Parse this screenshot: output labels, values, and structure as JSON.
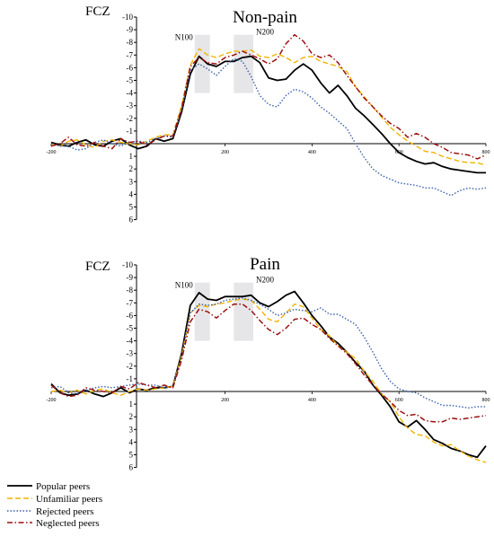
{
  "chart_data": [
    {
      "type": "line",
      "title": "Non-pain",
      "electrode": "FCZ",
      "y_ticks": [
        "-10",
        "-9",
        "-8",
        "-7",
        "-6",
        "-5",
        "-4",
        "-3",
        "-2",
        "-1",
        "1",
        "2",
        "3",
        "4",
        "5",
        "6"
      ],
      "y_tick_values": [
        -10,
        -9,
        -8,
        -7,
        -6,
        -5,
        -4,
        -3,
        -2,
        -1,
        1,
        2,
        3,
        4,
        5,
        6
      ],
      "x_ticks": [
        "-200",
        "200",
        "400",
        "600",
        "800"
      ],
      "x_tick_values": [
        -200,
        200,
        400,
        600,
        800
      ],
      "xlim": [
        -200,
        800
      ],
      "ylim": [
        -10,
        6
      ],
      "y_axis_inverted": true,
      "windows": [
        {
          "label": "N100",
          "x_range": [
            130,
            165
          ],
          "y_range": [
            -8.6,
            -4
          ]
        },
        {
          "label": "N200",
          "x_range": [
            220,
            265
          ],
          "y_range": [
            -8.6,
            -4
          ]
        }
      ],
      "series": [
        {
          "name": "Popular peers",
          "x": [
            -200,
            -180,
            -160,
            -140,
            -120,
            -100,
            -80,
            -60,
            -40,
            -20,
            0,
            20,
            40,
            60,
            80,
            100,
            120,
            140,
            160,
            180,
            200,
            220,
            240,
            260,
            280,
            300,
            320,
            340,
            360,
            380,
            400,
            420,
            440,
            460,
            480,
            500,
            520,
            540,
            560,
            580,
            600,
            620,
            640,
            660,
            680,
            700,
            720,
            740,
            760,
            780,
            800
          ],
          "y": [
            -0.1,
            0.1,
            0.2,
            -0.1,
            -0.3,
            0.1,
            0.2,
            -0.2,
            -0.4,
            0.1,
            0.4,
            0.2,
            -0.4,
            -0.2,
            -0.4,
            -2.5,
            -5.5,
            -6.9,
            -6.3,
            -6.1,
            -6.5,
            -6.5,
            -6.8,
            -6.9,
            -6.4,
            -5.2,
            -5,
            -5.1,
            -5.8,
            -6.3,
            -5.8,
            -4.8,
            -4,
            -4.6,
            -3.8,
            -2.8,
            -2.2,
            -1.5,
            -0.8,
            0,
            0.7,
            1.1,
            1.4,
            1.6,
            1.5,
            1.8,
            2,
            2.1,
            2.2,
            2.3,
            2.3
          ]
        },
        {
          "name": "Unfamiliar peers",
          "x": [
            -200,
            -180,
            -160,
            -140,
            -120,
            -100,
            -80,
            -60,
            -40,
            -20,
            0,
            20,
            40,
            60,
            80,
            100,
            120,
            140,
            160,
            180,
            200,
            220,
            240,
            260,
            280,
            300,
            320,
            340,
            360,
            380,
            400,
            420,
            440,
            460,
            480,
            500,
            520,
            540,
            560,
            580,
            600,
            620,
            640,
            660,
            680,
            700,
            720,
            740,
            760,
            780,
            800
          ],
          "y": [
            0,
            0.2,
            -0.2,
            -0.3,
            0.1,
            0.3,
            -0.2,
            -0.3,
            -0.1,
            0,
            0.1,
            -0.2,
            -0.5,
            -0.7,
            -0.7,
            -3,
            -6.2,
            -7.5,
            -7,
            -6.8,
            -7.1,
            -7.3,
            -7.3,
            -7.4,
            -6.9,
            -6.8,
            -7.1,
            -6.8,
            -6.4,
            -6.8,
            -6.9,
            -6.5,
            -6.3,
            -6.1,
            -5.7,
            -4.5,
            -3.7,
            -2.9,
            -2.1,
            -1.3,
            -0.7,
            -0.2,
            0.2,
            0.6,
            0.7,
            1,
            1.2,
            1.4,
            1.5,
            1.5,
            1.7
          ]
        },
        {
          "name": "Rejected peers",
          "x": [
            -200,
            -180,
            -160,
            -140,
            -120,
            -100,
            -80,
            -60,
            -40,
            -20,
            0,
            20,
            40,
            60,
            80,
            100,
            120,
            140,
            160,
            180,
            200,
            220,
            240,
            260,
            280,
            300,
            320,
            340,
            360,
            380,
            400,
            420,
            440,
            460,
            480,
            500,
            520,
            540,
            560,
            580,
            600,
            620,
            640,
            660,
            680,
            700,
            720,
            740,
            760,
            780,
            800
          ],
          "y": [
            0,
            0.2,
            0.2,
            0.5,
            0.4,
            -0.1,
            -0.3,
            0,
            0.2,
            -0.1,
            -0.2,
            -0.1,
            -0.4,
            -0.6,
            -0.5,
            -2.6,
            -5.8,
            -6.3,
            -5.9,
            -5.4,
            -6.1,
            -6.7,
            -6.5,
            -5.3,
            -3.8,
            -3.1,
            -2.9,
            -3.8,
            -4.3,
            -4.1,
            -3.6,
            -2.9,
            -2.4,
            -1.8,
            -1.2,
            0,
            1.1,
            2,
            2.5,
            2.8,
            3.1,
            3.2,
            3.3,
            3.5,
            3.5,
            3.8,
            4.1,
            3.7,
            3.5,
            3.6,
            3.5
          ]
        },
        {
          "name": "Neglected peers",
          "x": [
            -200,
            -180,
            -160,
            -140,
            -120,
            -100,
            -80,
            -60,
            -40,
            -20,
            0,
            20,
            40,
            60,
            80,
            100,
            120,
            140,
            160,
            180,
            200,
            220,
            240,
            260,
            280,
            300,
            320,
            340,
            360,
            380,
            400,
            420,
            440,
            460,
            480,
            500,
            520,
            540,
            560,
            580,
            600,
            620,
            640,
            660,
            680,
            700,
            720,
            740,
            760,
            780,
            800
          ],
          "y": [
            0.2,
            0,
            -0.5,
            0.1,
            0.2,
            -0.1,
            0.2,
            0.4,
            -0.4,
            -0.1,
            -0.2,
            0.1,
            -0.3,
            -0.6,
            -0.6,
            -2.8,
            -6.1,
            -6.8,
            -6.4,
            -6.3,
            -6.8,
            -7,
            -7.3,
            -7,
            -6.7,
            -6.3,
            -6.7,
            -7.9,
            -8.6,
            -8.1,
            -7.1,
            -6.8,
            -7,
            -6.4,
            -5.4,
            -4.5,
            -3.6,
            -2.9,
            -2.2,
            -1.6,
            -1.2,
            -0.5,
            -0.8,
            -0.5,
            0,
            0.3,
            0.7,
            0.8,
            0.9,
            1.2,
            0.9
          ]
        }
      ]
    },
    {
      "type": "line",
      "title": "Pain",
      "electrode": "FCZ",
      "y_ticks": [
        "-10",
        "-9",
        "-8",
        "-7",
        "-6",
        "-5",
        "-4",
        "-3",
        "-2",
        "-1",
        "1",
        "2",
        "3",
        "4",
        "5",
        "6"
      ],
      "y_tick_values": [
        -10,
        -9,
        -8,
        -7,
        -6,
        -5,
        -4,
        -3,
        -2,
        -1,
        1,
        2,
        3,
        4,
        5,
        6
      ],
      "x_ticks": [
        "-200",
        "200",
        "400",
        "600",
        "800"
      ],
      "x_tick_values": [
        -200,
        200,
        400,
        600,
        800
      ],
      "xlim": [
        -200,
        800
      ],
      "ylim": [
        -10,
        6
      ],
      "y_axis_inverted": true,
      "windows": [
        {
          "label": "N100",
          "x_range": [
            130,
            165
          ],
          "y_range": [
            -8.6,
            -4
          ]
        },
        {
          "label": "N200",
          "x_range": [
            220,
            265
          ],
          "y_range": [
            -8.6,
            -4
          ]
        }
      ],
      "series": [
        {
          "name": "Popular peers",
          "x": [
            -200,
            -180,
            -160,
            -140,
            -120,
            -100,
            -80,
            -60,
            -40,
            -20,
            0,
            20,
            40,
            60,
            80,
            100,
            120,
            140,
            160,
            180,
            200,
            220,
            240,
            260,
            280,
            300,
            320,
            340,
            360,
            380,
            400,
            420,
            440,
            460,
            480,
            500,
            520,
            540,
            560,
            580,
            600,
            620,
            640,
            660,
            680,
            700,
            720,
            740,
            760,
            780,
            800
          ],
          "y": [
            -0.6,
            0.1,
            0.3,
            0.2,
            -0.1,
            0.2,
            0.4,
            0.1,
            -0.3,
            0.1,
            -0.2,
            -0.1,
            -0.3,
            -0.3,
            -0.4,
            -3,
            -6.8,
            -7.8,
            -7.3,
            -7.2,
            -7.5,
            -7.5,
            -7.5,
            -7.6,
            -7,
            -6.7,
            -7.1,
            -7.6,
            -7.9,
            -7,
            -6,
            -5.2,
            -4.3,
            -3.8,
            -3.1,
            -2.3,
            -1.6,
            -0.5,
            0.3,
            1.2,
            2.4,
            2.8,
            2.3,
            3,
            3.8,
            4.1,
            4.5,
            4.7,
            5,
            5.2,
            4.3
          ]
        },
        {
          "name": "Unfamiliar peers",
          "x": [
            -200,
            -180,
            -160,
            -140,
            -120,
            -100,
            -80,
            -60,
            -40,
            -20,
            0,
            20,
            40,
            60,
            80,
            100,
            120,
            140,
            160,
            180,
            200,
            220,
            240,
            260,
            280,
            300,
            320,
            340,
            360,
            380,
            400,
            420,
            440,
            460,
            480,
            500,
            520,
            540,
            560,
            580,
            600,
            620,
            640,
            660,
            680,
            700,
            720,
            740,
            760,
            780,
            800
          ],
          "y": [
            0,
            -0.1,
            0.1,
            -0.1,
            0.2,
            -0.1,
            -0.2,
            0.1,
            0.3,
            0,
            -0.2,
            -0.1,
            -0.2,
            -0.3,
            -0.4,
            -2.8,
            -6.2,
            -6.8,
            -6.7,
            -6.9,
            -7,
            -7.2,
            -7.3,
            -7.2,
            -6.5,
            -5.7,
            -5.5,
            -6.2,
            -6.9,
            -6.7,
            -5.8,
            -4.9,
            -4.4,
            -3.6,
            -3.1,
            -2.6,
            -1.6,
            -0.8,
            0.2,
            0.8,
            2,
            2.9,
            3.4,
            3.5,
            4,
            4.3,
            4.2,
            4.7,
            5.1,
            5.4,
            5.6
          ]
        },
        {
          "name": "Rejected peers",
          "x": [
            -200,
            -180,
            -160,
            -140,
            -120,
            -100,
            -80,
            -60,
            -40,
            -20,
            0,
            20,
            40,
            60,
            80,
            100,
            120,
            140,
            160,
            180,
            200,
            220,
            240,
            260,
            280,
            300,
            320,
            340,
            360,
            380,
            400,
            420,
            440,
            460,
            480,
            500,
            520,
            540,
            560,
            580,
            600,
            620,
            640,
            660,
            680,
            700,
            720,
            740,
            760,
            780,
            800
          ],
          "y": [
            -0.3,
            -0.4,
            0.1,
            0.2,
            -0.1,
            -0.3,
            -0.4,
            -0.3,
            -0.4,
            -0.5,
            -0.6,
            -0.5,
            -0.5,
            -0.3,
            -0.4,
            -2.7,
            -6.2,
            -6.9,
            -6.8,
            -6.9,
            -7.2,
            -7.3,
            -7.4,
            -7.2,
            -6.9,
            -6.5,
            -6,
            -6.2,
            -6.5,
            -6.4,
            -6.3,
            -6.6,
            -6.1,
            -6.1,
            -5.7,
            -5.3,
            -4.3,
            -3.1,
            -1.8,
            -0.8,
            -0.2,
            0,
            0.1,
            0.5,
            0.8,
            1.1,
            1.1,
            1.2,
            1.3,
            1.2,
            1.2
          ]
        },
        {
          "name": "Neglected peers",
          "x": [
            -200,
            -180,
            -160,
            -140,
            -120,
            -100,
            -80,
            -60,
            -40,
            -20,
            0,
            20,
            40,
            60,
            80,
            100,
            120,
            140,
            160,
            180,
            200,
            220,
            240,
            260,
            280,
            300,
            320,
            340,
            360,
            380,
            400,
            420,
            440,
            460,
            480,
            500,
            520,
            540,
            560,
            580,
            600,
            620,
            640,
            660,
            680,
            700,
            720,
            740,
            760,
            780,
            800
          ],
          "y": [
            -0.5,
            0.1,
            0.4,
            0.3,
            -0.3,
            -0.1,
            0,
            0.1,
            -0.4,
            -0.2,
            -0.7,
            -0.5,
            -0.3,
            -0.5,
            -0.3,
            -2.5,
            -5.5,
            -6.5,
            -6.3,
            -5.8,
            -6.4,
            -6.9,
            -6.9,
            -6.4,
            -5.6,
            -4.9,
            -4.5,
            -5,
            -5.7,
            -5.8,
            -5.3,
            -4.9,
            -4.2,
            -3.6,
            -3,
            -2.2,
            -1.3,
            -0.5,
            0.2,
            0.8,
            1.5,
            1.9,
            1.8,
            2.3,
            2.4,
            2.4,
            2.1,
            2.2,
            2.1,
            2,
            1.9
          ]
        }
      ]
    }
  ],
  "legend": [
    {
      "label": "Popular peers",
      "color": "#000000",
      "dash": "solid"
    },
    {
      "label": "Unfamiliar peers",
      "color": "#f0b400",
      "dash": "dashed"
    },
    {
      "label": "Rejected peers",
      "color": "#3a5fa8",
      "dash": "dotted"
    },
    {
      "label": "Neglected peers",
      "color": "#9b1010",
      "dash": "dash-dot"
    }
  ]
}
